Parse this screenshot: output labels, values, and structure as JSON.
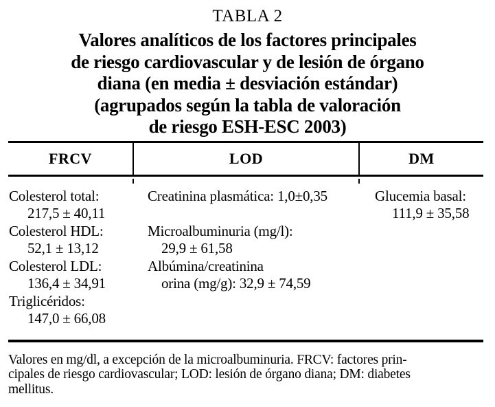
{
  "caption": {
    "label": "TABLA 2",
    "title_lines": [
      "Valores analíticos de los factores principales",
      "de riesgo cardiovascular y de lesión de órgano",
      "diana (en media ± desviación estándar)",
      "(agrupados según la tabla de valoración",
      "de riesgo ESH-ESC 2003)"
    ]
  },
  "table": {
    "headers": [
      "FRCV",
      "LOD",
      "DM"
    ],
    "frcv_lines": [
      "Colesterol total:",
      "217,5 ± 40,11",
      "Colesterol HDL:",
      "52,1 ± 13,12",
      "Colesterol LDL:",
      "136,4 ± 34,91",
      "Triglicéridos:",
      "147,0 ± 66,08"
    ],
    "lod_lines": [
      "Creatinina plasmática: 1,0±0,35",
      "",
      "Microalbuminuria (mg/l):",
      "29,9 ± 61,58",
      "Albúmina/creatinina",
      "orina (mg/g): 32,9 ± 74,59"
    ],
    "dm_lines": [
      "Glucemia basal:",
      "111,9 ± 35,58"
    ]
  },
  "footnote_lines": [
    "Valores en mg/dl, a excepción de la microalbuminuria. FRCV: factores prin-",
    "cipales de riesgo cardiovascular; LOD: lesión de órgano diana; DM: diabetes",
    "mellitus."
  ],
  "colors": {
    "background": "#ffffff",
    "text": "#000000",
    "rule": "#000000"
  }
}
